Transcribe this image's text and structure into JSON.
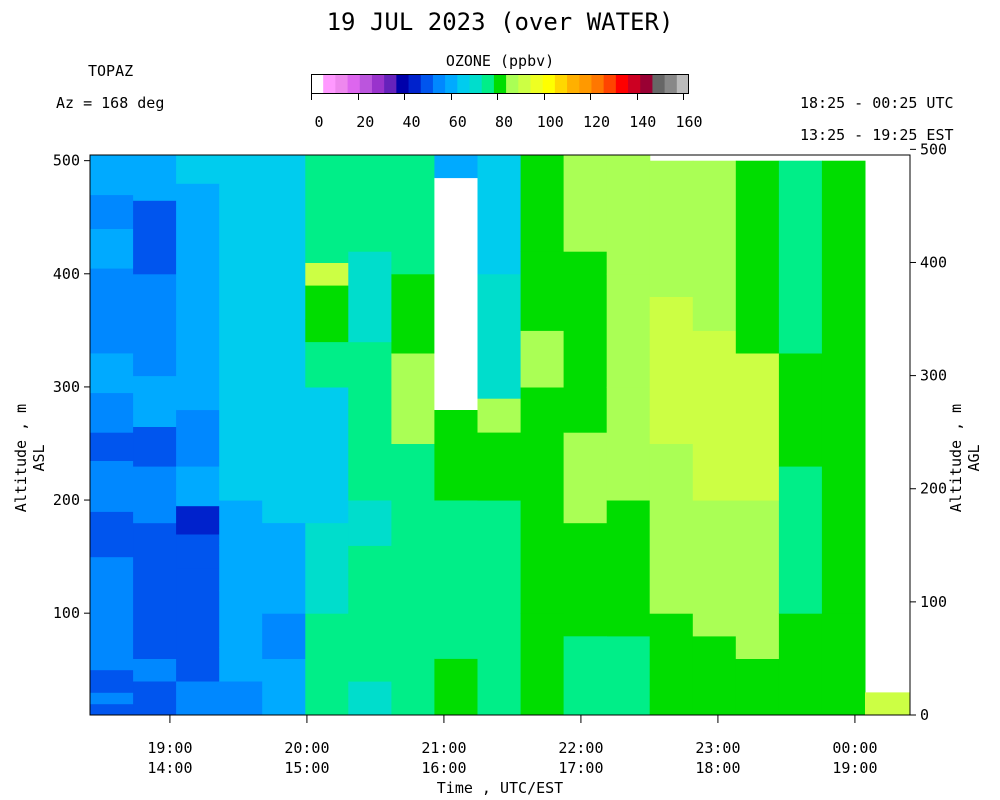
{
  "header": {
    "title": "19 JUL 2023 (over WATER)",
    "instrument": "TOPAZ",
    "azimuth": "Az = 168 deg",
    "utc_range": "18:25 - 00:25 UTC",
    "est_range": "13:25 - 19:25 EST"
  },
  "colorbar": {
    "title": "OZONE (ppbv)",
    "ticks": [
      "0",
      "20",
      "40",
      "60",
      "80",
      "100",
      "120",
      "140",
      "160"
    ],
    "colors": [
      "#ffffff",
      "#ff99ff",
      "#ee88ee",
      "#dd66ee",
      "#bb55dd",
      "#9933cc",
      "#6622bb",
      "#0000aa",
      "#0022cc",
      "#0055ee",
      "#0088ff",
      "#00aaff",
      "#00ccee",
      "#00ddcc",
      "#00ee88",
      "#00dd00",
      "#aaff55",
      "#ccff44",
      "#eeff22",
      "#ffff00",
      "#ffd700",
      "#ffb000",
      "#ff9900",
      "#ff7700",
      "#ff4400",
      "#ff0000",
      "#cc0022",
      "#990033",
      "#666666",
      "#888888",
      "#bbbbbb"
    ]
  },
  "chart_data": {
    "type": "heatmap",
    "title": "19 JUL 2023 (over WATER)",
    "xlabel": "Time , UTC/EST",
    "ylabel_left": "Altitude , m ASL",
    "ylabel_right": "Altitude , m AGL",
    "x_ticks_utc": [
      "19:00",
      "20:00",
      "21:00",
      "22:00",
      "23:00",
      "00:00"
    ],
    "x_ticks_est": [
      "14:00",
      "15:00",
      "16:00",
      "17:00",
      "18:00",
      "19:00"
    ],
    "y_ticks_left": [
      "100",
      "200",
      "300",
      "400",
      "500"
    ],
    "y_ticks_right": [
      "0",
      "100",
      "200",
      "300",
      "400",
      "500"
    ],
    "ylim_m_asl": [
      10,
      505
    ],
    "colorbar_range_ppbv": [
      0,
      160
    ],
    "columns": [
      {
        "time_utc": "18:30",
        "cells": [
          [
            10,
            20,
            48
          ],
          [
            20,
            30,
            54
          ],
          [
            30,
            50,
            48
          ],
          [
            50,
            150,
            52
          ],
          [
            150,
            190,
            48
          ],
          [
            190,
            235,
            55
          ],
          [
            235,
            260,
            50
          ],
          [
            260,
            295,
            54
          ],
          [
            295,
            330,
            57
          ],
          [
            330,
            360,
            54
          ],
          [
            360,
            405,
            55
          ],
          [
            405,
            440,
            57
          ],
          [
            440,
            470,
            55
          ],
          [
            470,
            505,
            60
          ]
        ]
      },
      {
        "time_utc": "18:50",
        "cells": [
          [
            10,
            40,
            48
          ],
          [
            40,
            60,
            54
          ],
          [
            60,
            180,
            48
          ],
          [
            180,
            200,
            55
          ],
          [
            200,
            230,
            54
          ],
          [
            230,
            265,
            48
          ],
          [
            265,
            310,
            57
          ],
          [
            310,
            400,
            54
          ],
          [
            400,
            465,
            48
          ],
          [
            465,
            505,
            56
          ]
        ]
      },
      {
        "time_utc": "19:10",
        "cells": [
          [
            10,
            40,
            54
          ],
          [
            40,
            60,
            48
          ],
          [
            60,
            120,
            48
          ],
          [
            120,
            140,
            50
          ],
          [
            140,
            170,
            49
          ],
          [
            170,
            195,
            40
          ],
          [
            195,
            230,
            56
          ],
          [
            230,
            280,
            54
          ],
          [
            280,
            480,
            60
          ],
          [
            480,
            505,
            66
          ]
        ]
      },
      {
        "time_utc": "19:30",
        "cells": [
          [
            10,
            40,
            54
          ],
          [
            40,
            70,
            56
          ],
          [
            70,
            120,
            58
          ],
          [
            120,
            160,
            56
          ],
          [
            160,
            200,
            60
          ],
          [
            200,
            365,
            62
          ],
          [
            365,
            505,
            66
          ]
        ]
      },
      {
        "time_utc": "19:50",
        "cells": [
          [
            10,
            60,
            60
          ],
          [
            60,
            100,
            54
          ],
          [
            100,
            140,
            58
          ],
          [
            140,
            180,
            60
          ],
          [
            180,
            280,
            62
          ],
          [
            280,
            505,
            64
          ]
        ]
      },
      {
        "time_utc": "20:10",
        "cells": [
          [
            10,
            100,
            72
          ],
          [
            100,
            180,
            70
          ],
          [
            180,
            200,
            62
          ],
          [
            200,
            300,
            66
          ],
          [
            300,
            340,
            76
          ],
          [
            340,
            360,
            82
          ],
          [
            360,
            390,
            78
          ],
          [
            390,
            410,
            88
          ],
          [
            410,
            505,
            72
          ]
        ]
      },
      {
        "time_utc": "20:30",
        "cells": [
          [
            10,
            40,
            70
          ],
          [
            40,
            160,
            72
          ],
          [
            160,
            200,
            70
          ],
          [
            200,
            280,
            74
          ],
          [
            280,
            340,
            72
          ],
          [
            340,
            420,
            70
          ],
          [
            420,
            505,
            72
          ]
        ]
      },
      {
        "time_utc": "20:50",
        "cells": [
          [
            10,
            100,
            75
          ],
          [
            100,
            250,
            76
          ],
          [
            250,
            330,
            84
          ],
          [
            330,
            400,
            80
          ],
          [
            400,
            505,
            76
          ]
        ]
      },
      {
        "time_utc": "21:10",
        "cells": [
          [
            10,
            60,
            80
          ],
          [
            60,
            130,
            76
          ],
          [
            130,
            200,
            76
          ],
          [
            200,
            280,
            78
          ],
          [
            280,
            485,
            0
          ],
          [
            485,
            505,
            60
          ]
        ]
      },
      {
        "time_utc": "21:30",
        "cells": [
          [
            10,
            100,
            76
          ],
          [
            100,
            200,
            76
          ],
          [
            200,
            260,
            78
          ],
          [
            260,
            290,
            86
          ],
          [
            290,
            400,
            70
          ],
          [
            400,
            505,
            66
          ]
        ]
      },
      {
        "time_utc": "21:50",
        "cells": [
          [
            10,
            100,
            80
          ],
          [
            100,
            200,
            82
          ],
          [
            200,
            300,
            82
          ],
          [
            300,
            350,
            84
          ],
          [
            350,
            420,
            82
          ],
          [
            420,
            505,
            82
          ]
        ]
      },
      {
        "time_utc": "22:10",
        "cells": [
          [
            10,
            80,
            76
          ],
          [
            80,
            180,
            80
          ],
          [
            180,
            260,
            84
          ],
          [
            260,
            420,
            82
          ],
          [
            420,
            505,
            84
          ]
        ]
      },
      {
        "time_utc": "22:30",
        "cells": [
          [
            10,
            80,
            76
          ],
          [
            80,
            200,
            80
          ],
          [
            200,
            300,
            84
          ],
          [
            300,
            400,
            84
          ],
          [
            400,
            505,
            86
          ]
        ]
      },
      {
        "time_utc": "22:50",
        "cells": [
          [
            10,
            100,
            80
          ],
          [
            100,
            250,
            86
          ],
          [
            250,
            380,
            90
          ],
          [
            380,
            500,
            84
          ]
        ]
      },
      {
        "time_utc": "23:10",
        "cells": [
          [
            10,
            80,
            82
          ],
          [
            80,
            200,
            86
          ],
          [
            200,
            350,
            92
          ],
          [
            350,
            500,
            84
          ]
        ]
      },
      {
        "time_utc": "23:30",
        "cells": [
          [
            10,
            60,
            80
          ],
          [
            60,
            200,
            84
          ],
          [
            200,
            330,
            88
          ],
          [
            330,
            500,
            82
          ]
        ]
      },
      {
        "time_utc": "23:50",
        "cells": [
          [
            10,
            100,
            80
          ],
          [
            100,
            230,
            76
          ],
          [
            230,
            330,
            82
          ],
          [
            330,
            500,
            76
          ]
        ]
      },
      {
        "time_utc": "00:10",
        "cells": [
          [
            10,
            100,
            82
          ],
          [
            100,
            250,
            80
          ],
          [
            250,
            400,
            78
          ],
          [
            400,
            500,
            80
          ]
        ]
      }
    ],
    "missing": "white"
  }
}
